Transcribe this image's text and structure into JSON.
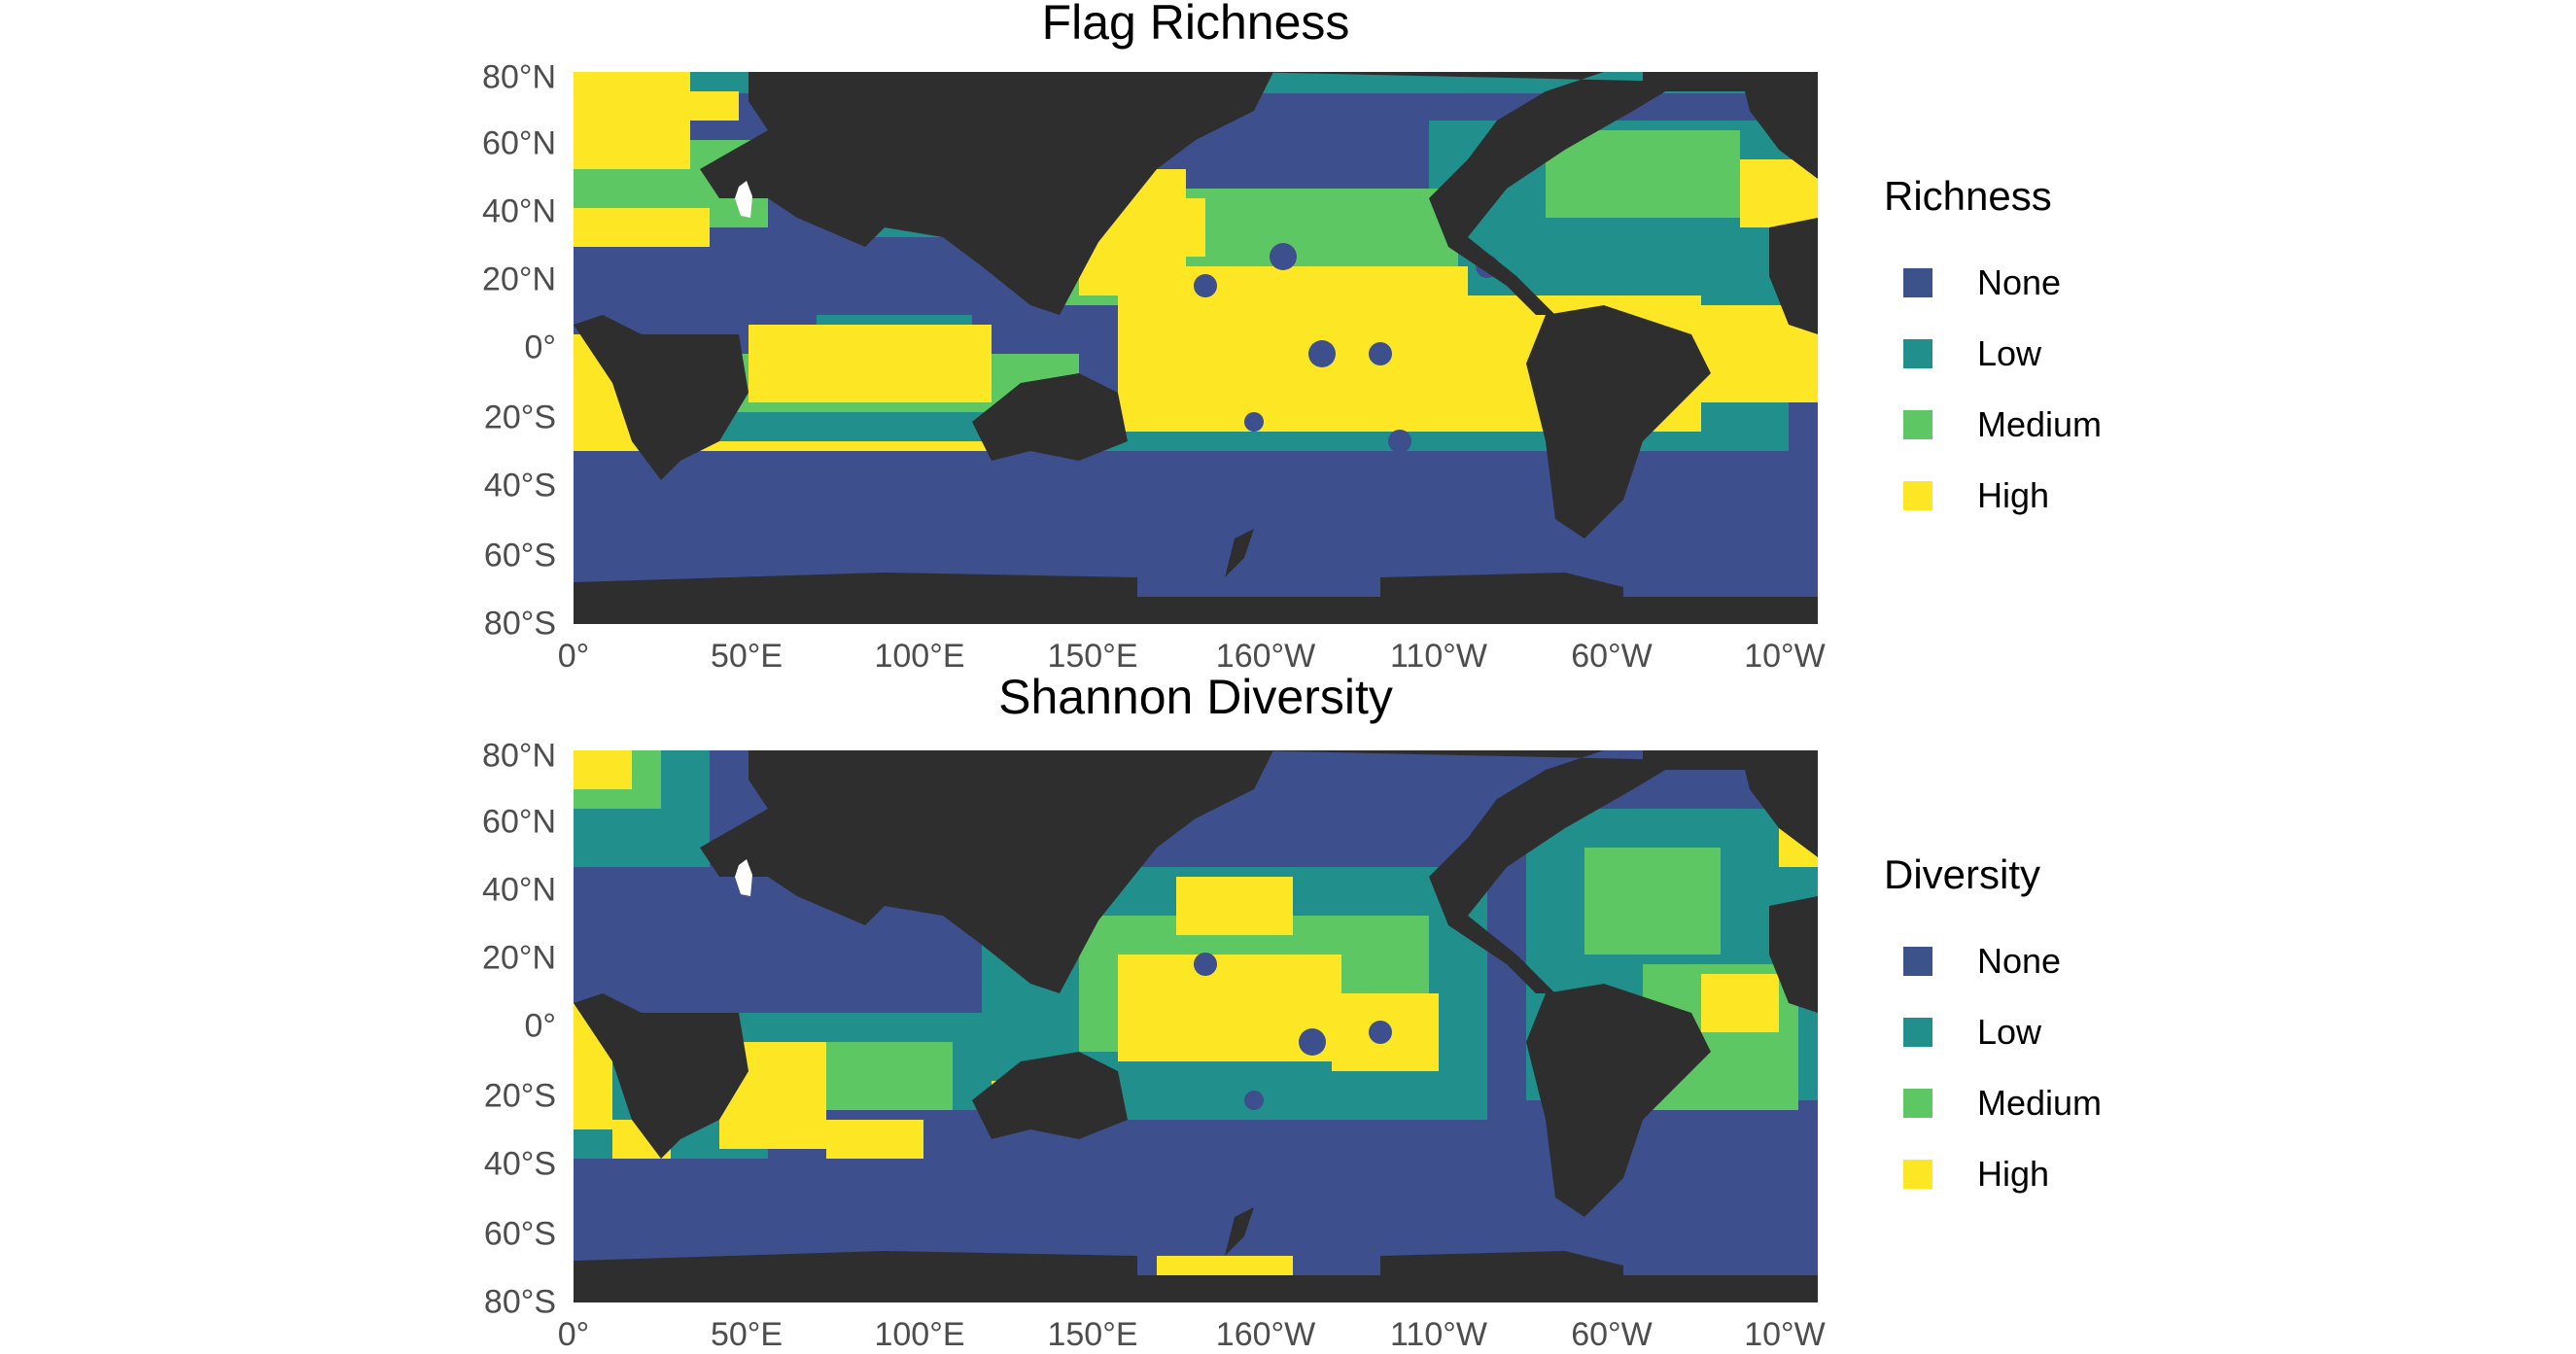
{
  "panels": [
    {
      "title": "Flag Richness",
      "legend": {
        "title": "Richness",
        "items": [
          {
            "label": "None",
            "color": "#3b528b"
          },
          {
            "label": "Low",
            "color": "#21908c"
          },
          {
            "label": "Medium",
            "color": "#5dc863"
          },
          {
            "label": "High",
            "color": "#fde725"
          }
        ]
      }
    },
    {
      "title": "Shannon Diversity",
      "legend": {
        "title": "Diversity",
        "items": [
          {
            "label": "None",
            "color": "#3b528b"
          },
          {
            "label": "Low",
            "color": "#21908c"
          },
          {
            "label": "Medium",
            "color": "#5dc863"
          },
          {
            "label": "High",
            "color": "#fde725"
          }
        ]
      }
    }
  ],
  "axes": {
    "lat_ticks": [
      "80°N",
      "60°N",
      "40°N",
      "20°N",
      "0°",
      "20°S",
      "40°S",
      "60°S",
      "80°S"
    ],
    "lon_ticks": [
      "0°",
      "50°E",
      "100°E",
      "150°E",
      "160°W",
      "110°W",
      "60°W",
      "10°W"
    ]
  },
  "colors": {
    "land": "#2e2e2e",
    "ocean_none": "#3d4f8c",
    "low": "#21908c",
    "medium": "#5dc863",
    "high": "#fde725"
  }
}
